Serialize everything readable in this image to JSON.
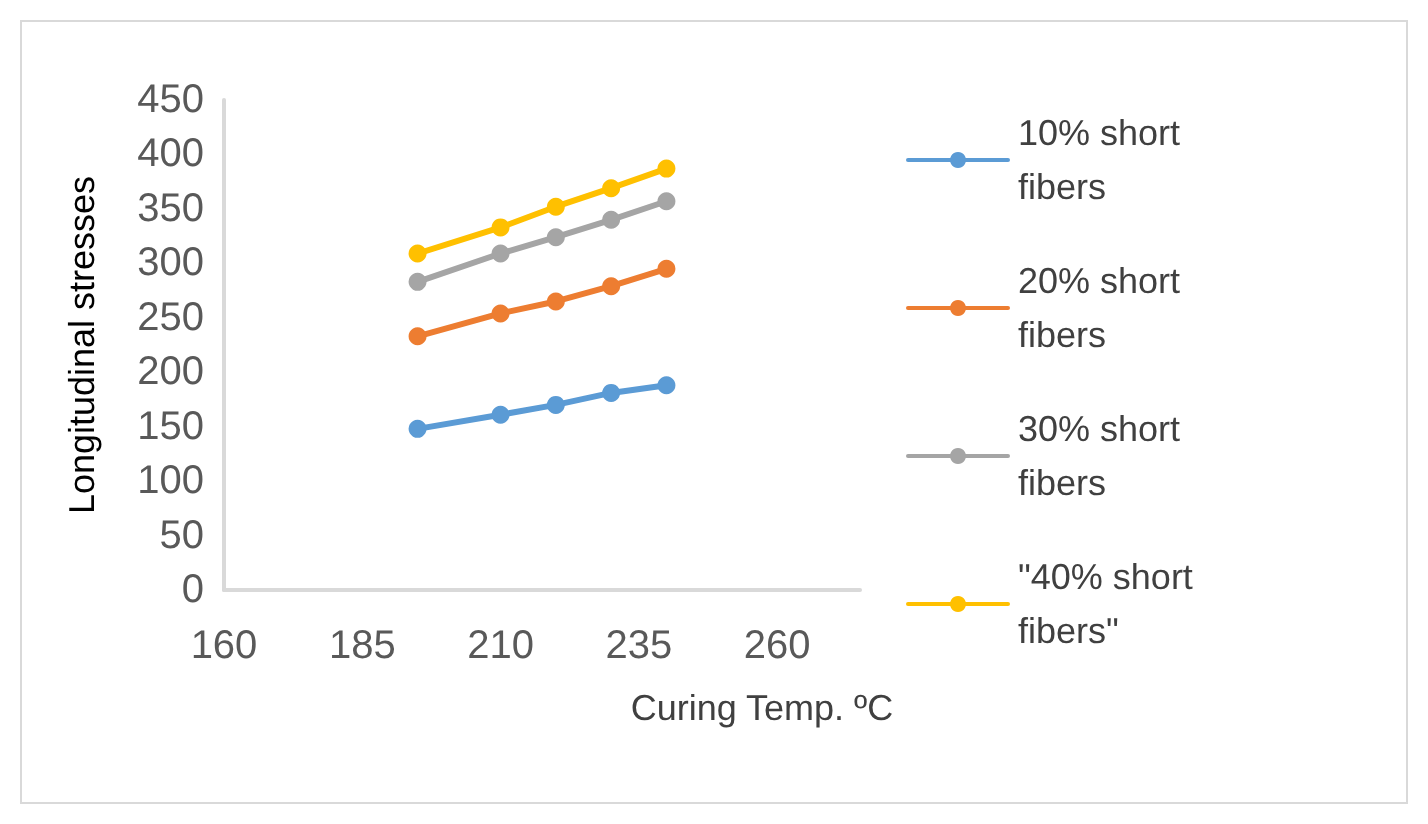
{
  "chart_data": {
    "type": "line",
    "xlabel": "Curing Temp. ºC",
    "ylabel": "Longitudinal stresses",
    "x": [
      195,
      210,
      220,
      230,
      240
    ],
    "series": [
      {
        "name": "10% short fibers",
        "color": "#5b9bd5",
        "values": [
          148,
          161,
          170,
          181,
          188
        ]
      },
      {
        "name": "20% short fibers",
        "color": "#ed7d31",
        "values": [
          233,
          254,
          265,
          279,
          295
        ]
      },
      {
        "name": "30% short fibers",
        "color": "#a5a5a5",
        "values": [
          283,
          309,
          324,
          340,
          357
        ]
      },
      {
        "name": "\"40% short fibers\"",
        "color": "#ffc000",
        "values": [
          309,
          333,
          352,
          369,
          387
        ]
      }
    ],
    "xlim": [
      160,
      275
    ],
    "xticks": [
      160,
      185,
      210,
      235,
      260
    ],
    "ylim": [
      0,
      450
    ],
    "yticks": [
      0,
      50,
      100,
      150,
      200,
      250,
      300,
      350,
      400,
      450
    ],
    "grid": false,
    "legend": "right",
    "marker": "circle",
    "line_style": "solid"
  }
}
